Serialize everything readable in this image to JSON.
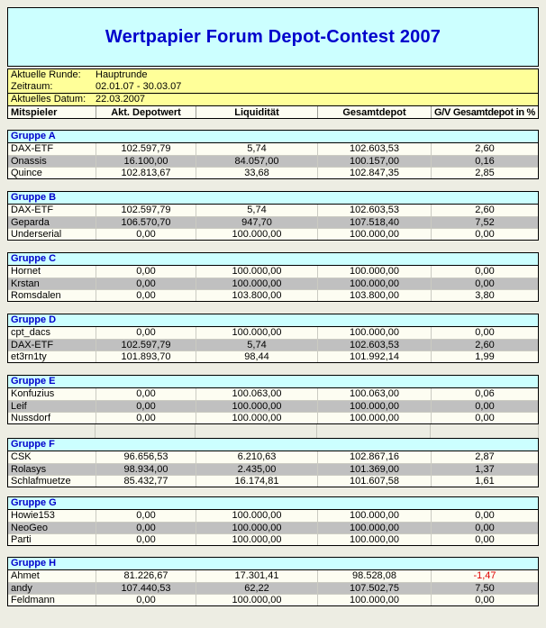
{
  "title": "Wertpapier Forum Depot-Contest 2007",
  "info": {
    "rows": [
      {
        "label": "Aktuelle Runde:",
        "value": "Hauptrunde"
      },
      {
        "label": "Zeitraum:",
        "value": "02.01.07 - 30.03.07"
      },
      {
        "label": "Aktuelles Datum:",
        "value": "22.03.2007"
      }
    ]
  },
  "columns": [
    "Mitspieler",
    "Akt. Depotwert",
    "Liquidität",
    "Gesamtdepot",
    "G/V Gesamtdepot in %"
  ],
  "groups": [
    {
      "name": "Gruppe A",
      "rows": [
        {
          "cells": [
            "DAX-ETF",
            "102.597,79",
            "5,74",
            "102.603,53",
            "2,60"
          ]
        },
        {
          "cells": [
            "Onassis",
            "16.100,00",
            "84.057,00",
            "100.157,00",
            "0,16"
          ]
        },
        {
          "cells": [
            "Quince",
            "102.813,67",
            "33,68",
            "102.847,35",
            "2,85"
          ]
        }
      ]
    },
    {
      "name": "Gruppe B",
      "rows": [
        {
          "cells": [
            "DAX-ETF",
            "102.597,79",
            "5,74",
            "102.603,53",
            "2,60"
          ]
        },
        {
          "cells": [
            "Geparda",
            "106.570,70",
            "947,70",
            "107.518,40",
            "7,52"
          ]
        },
        {
          "cells": [
            "Underserial",
            "0,00",
            "100.000,00",
            "100.000,00",
            "0,00"
          ]
        }
      ]
    },
    {
      "name": "Gruppe C",
      "rows": [
        {
          "cells": [
            "Hornet",
            "0,00",
            "100.000,00",
            "100.000,00",
            "0,00"
          ]
        },
        {
          "cells": [
            "Krstan",
            "0,00",
            "100.000,00",
            "100.000,00",
            "0,00"
          ]
        },
        {
          "cells": [
            "Romsdalen",
            "0,00",
            "103.800,00",
            "103.800,00",
            "3,80"
          ]
        }
      ]
    },
    {
      "name": "Gruppe D",
      "rows": [
        {
          "cells": [
            "cpt_dacs",
            "0,00",
            "100.000,00",
            "100.000,00",
            "0,00"
          ]
        },
        {
          "cells": [
            "DAX-ETF",
            "102.597,79",
            "5,74",
            "102.603,53",
            "2,60"
          ]
        },
        {
          "cells": [
            "et3rn1ty",
            "101.893,70",
            "98,44",
            "101.992,14",
            "1,99"
          ]
        }
      ]
    },
    {
      "name": "Gruppe E",
      "rows": [
        {
          "cells": [
            "Konfuzius",
            "0,00",
            "100.063,00",
            "100.063,00",
            "0,06"
          ]
        },
        {
          "cells": [
            "Leif",
            "0,00",
            "100.000,00",
            "100.000,00",
            "0,00"
          ]
        },
        {
          "cells": [
            "Nussdorf",
            "0,00",
            "100.000,00",
            "100.000,00",
            "0,00"
          ]
        }
      ]
    },
    {
      "name": "Gruppe F",
      "rows": [
        {
          "cells": [
            "CSK",
            "96.656,53",
            "6.210,63",
            "102.867,16",
            "2,87"
          ]
        },
        {
          "cells": [
            "Rolasys",
            "98.934,00",
            "2.435,00",
            "101.369,00",
            "1,37"
          ]
        },
        {
          "cells": [
            "Schlafmuetze",
            "85.432,77",
            "16.174,81",
            "101.607,58",
            "1,61"
          ]
        }
      ]
    },
    {
      "name": "Gruppe G",
      "rows": [
        {
          "cells": [
            "Howie153",
            "0,00",
            "100.000,00",
            "100.000,00",
            "0,00"
          ]
        },
        {
          "cells": [
            "NeoGeo",
            "0,00",
            "100.000,00",
            "100.000,00",
            "0,00"
          ]
        },
        {
          "cells": [
            "Parti",
            "0,00",
            "100.000,00",
            "100.000,00",
            "0,00"
          ]
        }
      ]
    },
    {
      "name": "Gruppe H",
      "rows": [
        {
          "cells": [
            "Ahmet",
            "81.226,67",
            "17.301,41",
            "98.528,08",
            "-1,47"
          ]
        },
        {
          "cells": [
            "andy",
            "107.440,53",
            "62,22",
            "107.502,75",
            "7,50"
          ]
        },
        {
          "cells": [
            "Feldmann",
            "0,00",
            "100.000,00",
            "100.000,00",
            "0,00"
          ]
        }
      ]
    }
  ],
  "colors": {
    "accent_blue": "#0000CC",
    "title_bg": "#CCFFFF",
    "group_header_bg": "#CCFFFF",
    "info_bg": "#FFFF99",
    "row_gray": "#C0C0C0",
    "row_light": "#FDFDF2",
    "negative_value": "#E00000"
  }
}
